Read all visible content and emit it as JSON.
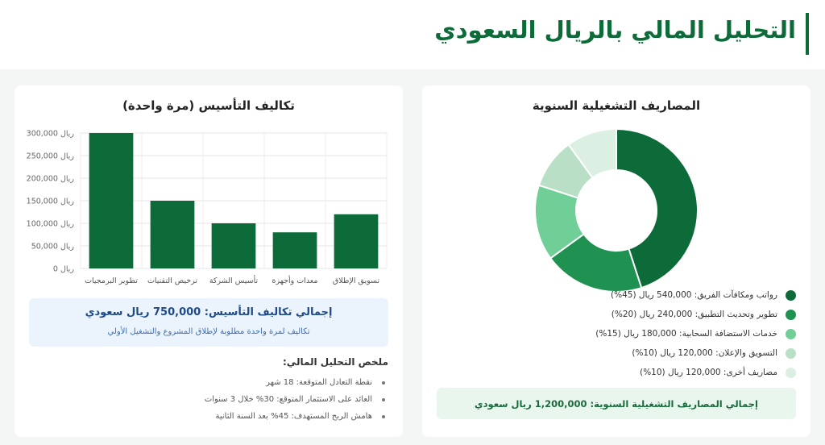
{
  "page": {
    "title": "التحليل المالي بالريال السعودي"
  },
  "operating": {
    "title": "المصاريف التشغيلية السنوية",
    "total": "إجمالي المصاريف التشغيلية السنوية: 1,200,000 ريال سعودي"
  },
  "setup": {
    "title": "تكاليف التأسيس (مرة واحدة)",
    "total": "إجمالي تكاليف التأسيس: 750,000 ريال سعودي",
    "total_note": "تكاليف لمرة واحدة مطلوبة لإطلاق المشروع والتشغيل الأولي"
  },
  "summary": {
    "title": "ملخص التحليل المالي:",
    "items": [
      "نقطة التعادل المتوقعة: 18 شهر",
      "العائد على الاستثمار المتوقع: 30% خلال 3 سنوات",
      "هامش الربح المستهدف: 45% بعد السنة الثانية"
    ]
  },
  "chart_data": [
    {
      "type": "pie",
      "variant": "doughnut",
      "title": "المصاريف التشغيلية السنوية",
      "categories": [
        "رواتب ومكافآت الفريق",
        "تطوير وتحديث التطبيق",
        "خدمات الاستضافة السحابية",
        "التسويق والإعلان",
        "مصاريف أخرى"
      ],
      "values": [
        540000,
        240000,
        180000,
        120000,
        120000
      ],
      "legend_labels": [
        "رواتب ومكافآت الفريق: 540,000 ريال (45%)",
        "تطوير وتحديث التطبيق: 240,000 ريال (20%)",
        "خدمات الاستضافة السحابية: 180,000 ريال (15%)",
        "التسويق والإعلان: 120,000 ريال (10%)",
        "مصاريف أخرى: 120,000 ريال (10%)"
      ],
      "colors": [
        "#0d6b3a",
        "#1f9150",
        "#6fcf97",
        "#b9e0c6",
        "#dcefe3"
      ],
      "legend": "bottom"
    },
    {
      "type": "bar",
      "title": "تكاليف التأسيس (مرة واحدة)",
      "categories": [
        "تطوير البرمجيات",
        "ترخيص التقنيات",
        "تأسيس الشركة",
        "معدات وأجهزة",
        "تسويق الإطلاق"
      ],
      "values": [
        300000,
        150000,
        100000,
        80000,
        120000
      ],
      "ylim": [
        0,
        300000
      ],
      "yticks": [
        0,
        50000,
        100000,
        150000,
        200000,
        250000,
        300000
      ],
      "ytick_labels": [
        "0 ريال",
        "50,000 ريال",
        "100,000 ريال",
        "150,000 ريال",
        "200,000 ريال",
        "250,000 ريال",
        "300,000 ريال"
      ],
      "bar_color": "#0d6b3a",
      "grid": true
    }
  ]
}
